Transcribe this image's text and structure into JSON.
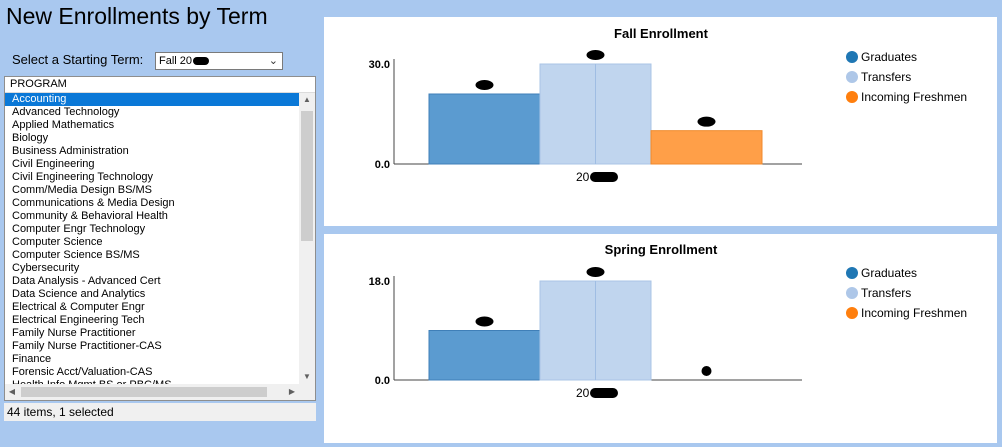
{
  "title": "New Enrollments by Term",
  "term_selector": {
    "label": "Select a Starting Term:",
    "value": "Fall 20"
  },
  "program_list": {
    "header": "PROGRAM",
    "items": [
      "Accounting",
      "Advanced Technology",
      "Applied Mathematics",
      "Biology",
      "Business Administration",
      "Civil Engineering",
      "Civil Engineering Technology",
      "Comm/Media Design BS/MS",
      "Communications & Media Design",
      "Community & Behavioral Health",
      "Computer Engr Technology",
      "Computer Science",
      "Computer Science BS/MS",
      "Cybersecurity",
      "Data Analysis - Advanced Cert",
      "Data Science and Analytics",
      "Electrical & Computer Engr",
      "Electrical Engineering Tech",
      "Family Nurse Practitioner",
      "Family Nurse Practitioner-CAS",
      "Finance",
      "Forensic Acct/Valuation-CAS",
      "Health Info Mgmt BS or PBC/MS"
    ],
    "selected_index": 0,
    "status": "44 items, 1 selected"
  },
  "legend": [
    {
      "label": "Graduates",
      "color": "#1f77b4"
    },
    {
      "label": "Transfers",
      "color": "#aec7e8"
    },
    {
      "label": "Incoming Freshmen",
      "color": "#ff7f0e"
    }
  ],
  "chart_data": [
    {
      "type": "bar",
      "title": "Fall Enrollment",
      "categories": [
        "20"
      ],
      "ylim": [
        0,
        30
      ],
      "yticks": [
        "0.0",
        "30.0"
      ],
      "series": [
        {
          "name": "Graduates",
          "values": [
            21
          ],
          "color": "#5b9bd0"
        },
        {
          "name": "Transfers",
          "values": [
            30
          ],
          "color": "#c0d5ee"
        },
        {
          "name": "Incoming Freshmen",
          "values": [
            10
          ],
          "color": "#ff9f48"
        }
      ]
    },
    {
      "type": "bar",
      "title": "Spring Enrollment",
      "categories": [
        "20"
      ],
      "ylim": [
        0,
        18
      ],
      "yticks": [
        "0.0",
        "18.0"
      ],
      "series": [
        {
          "name": "Graduates",
          "values": [
            9
          ],
          "color": "#5b9bd0"
        },
        {
          "name": "Transfers",
          "values": [
            18
          ],
          "color": "#c0d5ee"
        },
        {
          "name": "Incoming Freshmen",
          "values": [
            0
          ],
          "color": "#ff9f48"
        }
      ]
    }
  ]
}
